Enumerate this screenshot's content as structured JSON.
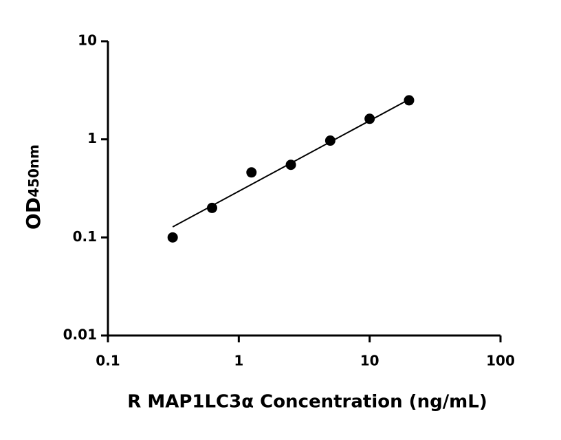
{
  "chart_data": {
    "type": "scatter",
    "xlabel": "R MAP1LC3α Concentration (ng/mL)",
    "ylabel": {
      "main": "OD",
      "sub": "450nm"
    },
    "xscale": "log",
    "yscale": "log",
    "xlim": [
      0.1,
      100
    ],
    "ylim": [
      0.01,
      10
    ],
    "xticks": [
      0.1,
      1,
      10,
      100
    ],
    "yticks": [
      0.01,
      0.1,
      1,
      10
    ],
    "series": [
      {
        "style": "markers",
        "color": "#000000",
        "x": [
          0.3125,
          0.625,
          1.25,
          2.5,
          5,
          10,
          20
        ],
        "values": [
          0.1,
          0.2,
          0.46,
          0.55,
          0.97,
          1.62,
          2.5
        ]
      },
      {
        "style": "line",
        "color": "#000000",
        "x": [
          0.3125,
          20
        ],
        "values": [
          0.128,
          2.55
        ]
      }
    ]
  }
}
